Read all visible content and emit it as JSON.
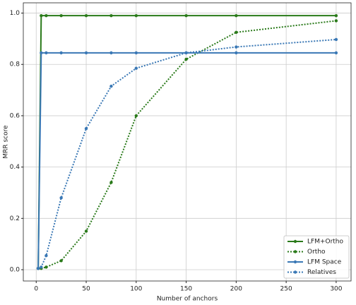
{
  "chart_data": {
    "type": "line",
    "xlabel": "Number of anchors",
    "ylabel": "MRR score",
    "x": [
      2,
      5,
      10,
      25,
      50,
      75,
      100,
      150,
      200,
      300
    ],
    "series": [
      {
        "name": "LFM+Ortho",
        "color": "#2a7a1a",
        "linestyle": "solid",
        "values": [
          0.005,
          0.99,
          0.99,
          0.99,
          0.99,
          0.99,
          0.99,
          0.99,
          0.99,
          0.99
        ]
      },
      {
        "name": "Ortho",
        "color": "#2a7a1a",
        "linestyle": "dotted",
        "values": [
          0.005,
          0.005,
          0.01,
          0.035,
          0.15,
          0.34,
          0.6,
          0.82,
          0.925,
          0.97
        ]
      },
      {
        "name": "LFM Space",
        "color": "#3a78b5",
        "linestyle": "solid",
        "values": [
          0.005,
          0.845,
          0.845,
          0.845,
          0.845,
          0.845,
          0.845,
          0.845,
          0.845,
          0.845
        ]
      },
      {
        "name": "Relatives",
        "color": "#3a78b5",
        "linestyle": "dotted",
        "values": [
          0.005,
          0.01,
          0.055,
          0.28,
          0.55,
          0.715,
          0.785,
          0.845,
          0.868,
          0.897
        ]
      }
    ],
    "xlim": [
      -12.9,
      314.9
    ],
    "ylim": [
      -0.044,
      1.04
    ],
    "xticks": [
      0,
      50,
      100,
      150,
      200,
      250,
      300
    ],
    "yticks": [
      {
        "value": 0,
        "label": "0.0"
      },
      0.2,
      0.4,
      0.6,
      0.8,
      {
        "value": 1,
        "label": "1.0"
      }
    ],
    "grid": true,
    "legend": "lower right"
  }
}
